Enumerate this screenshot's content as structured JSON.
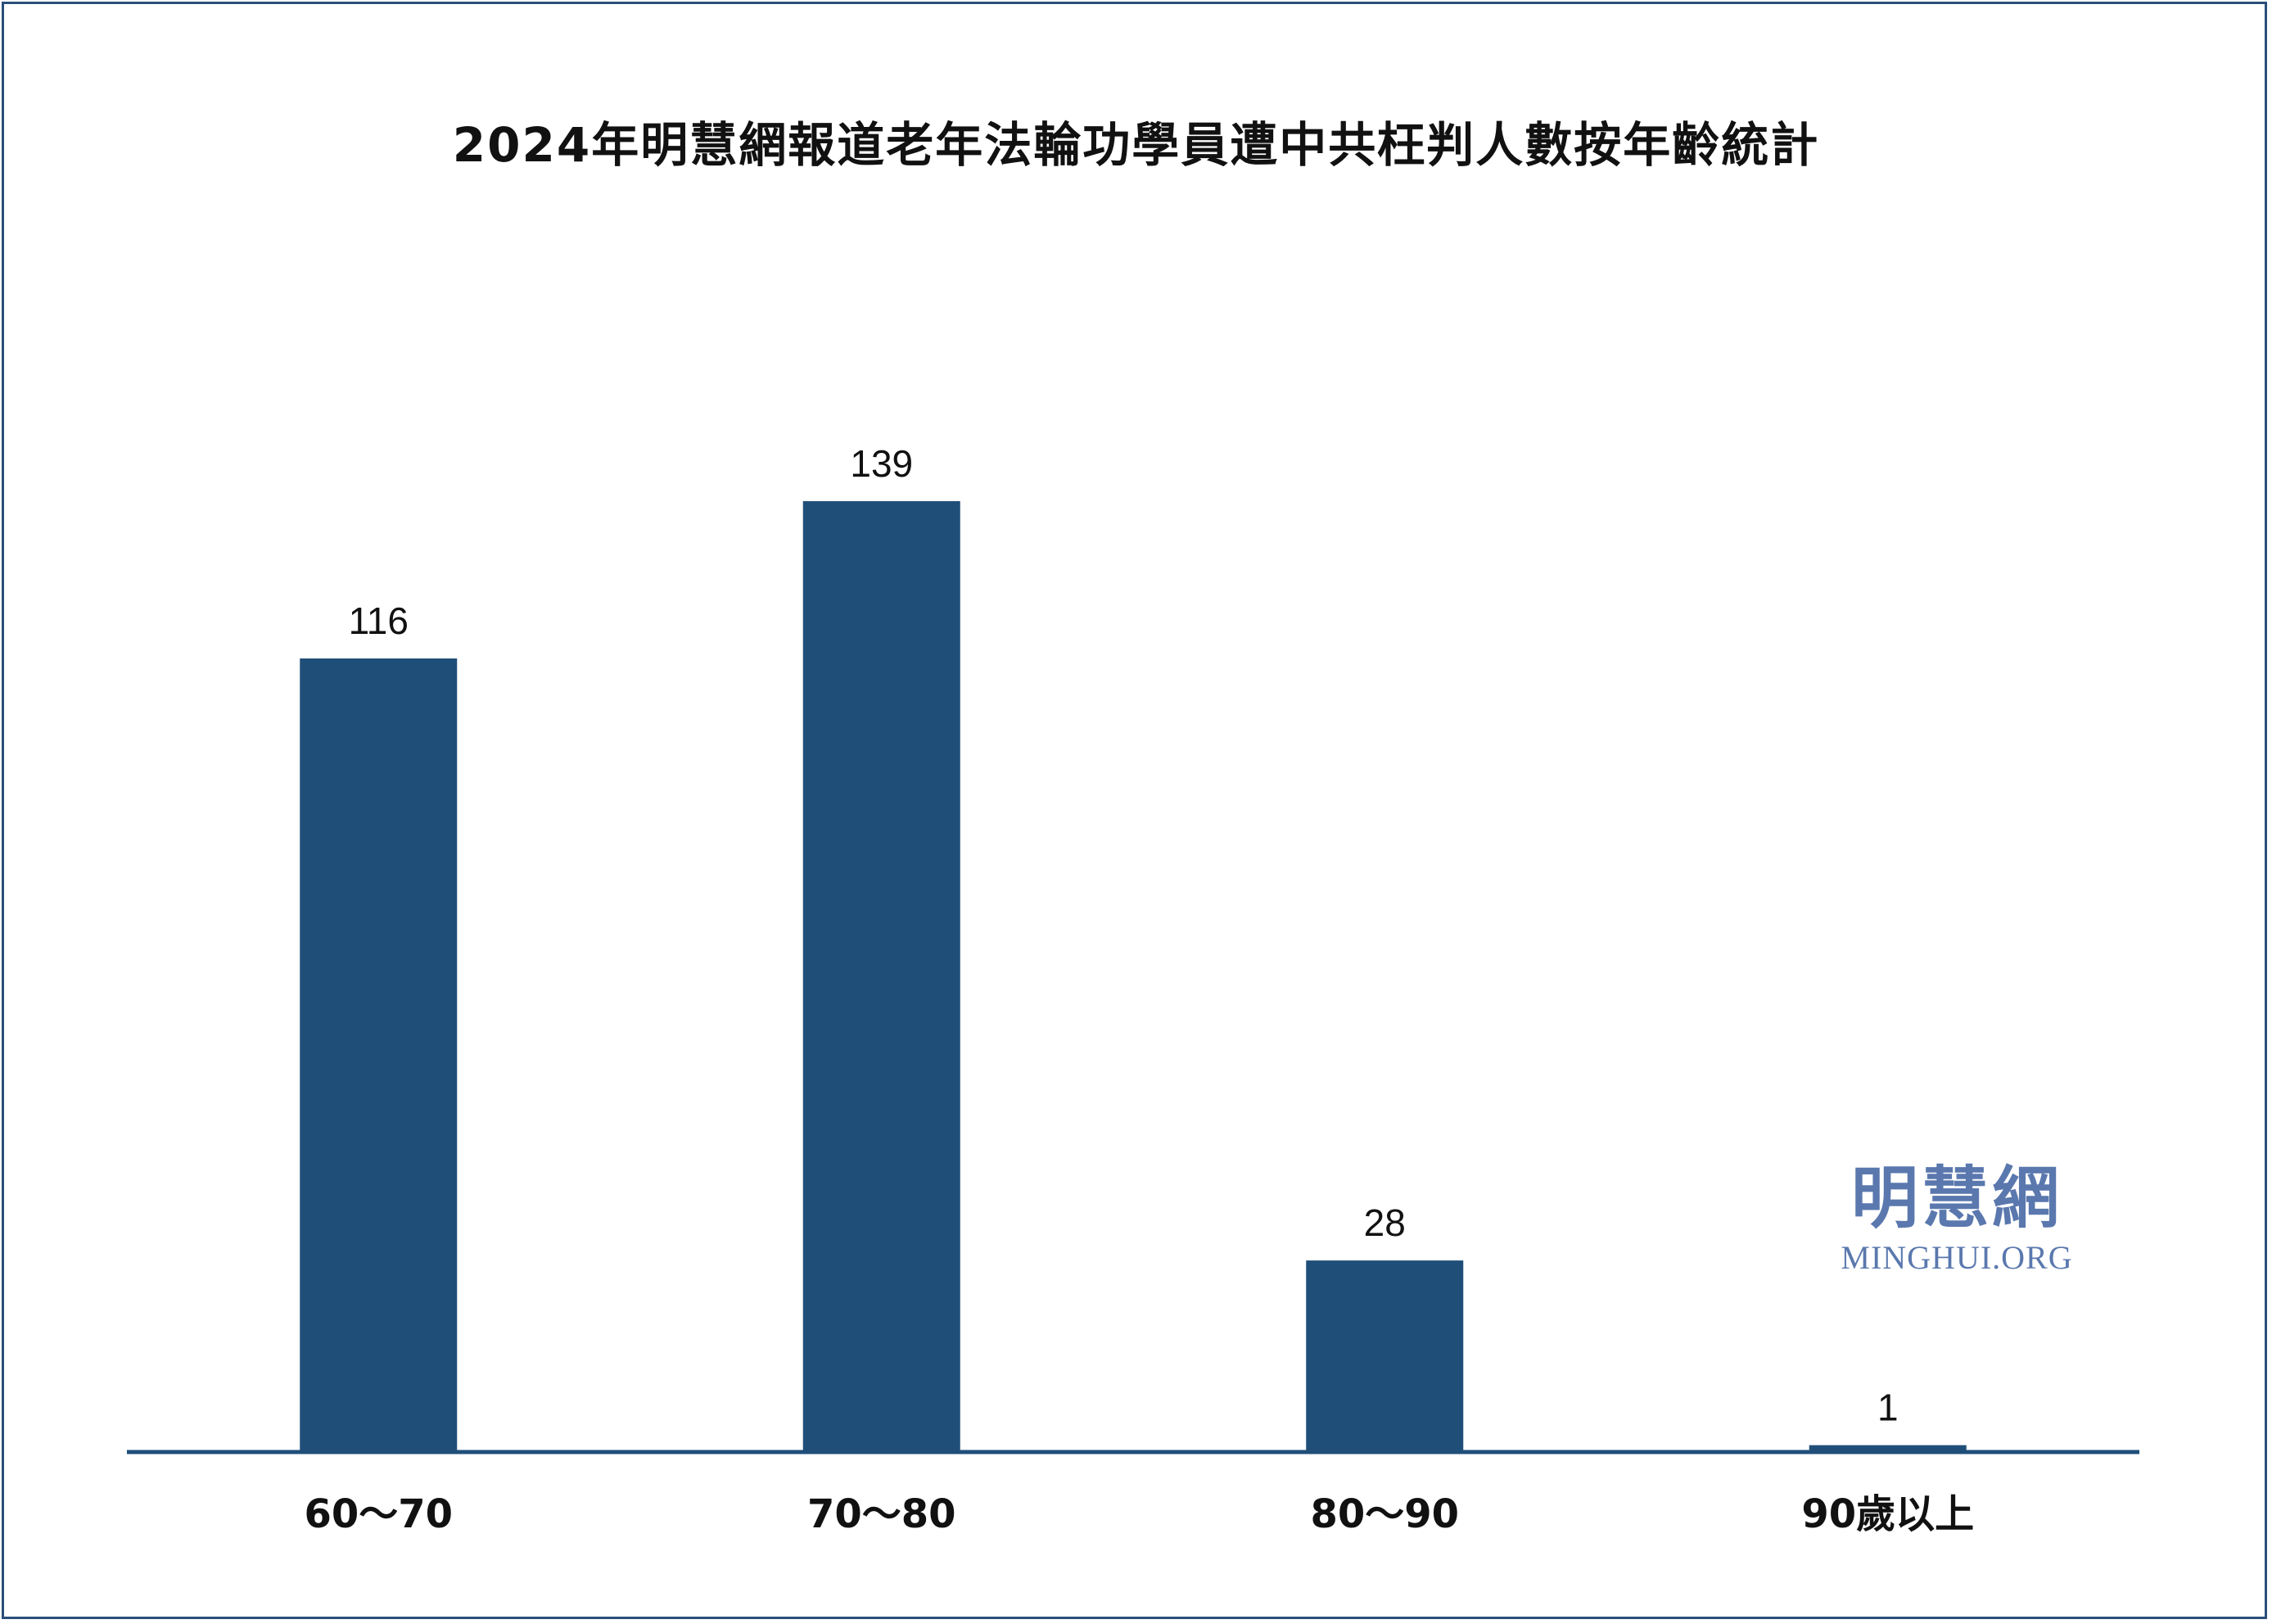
{
  "chart_data": {
    "type": "bar",
    "title": "2024年明慧網報道老年法輪功學員遭中共枉判人數按年齡統計",
    "categories": [
      "60～70",
      "70～80",
      "80～90",
      "90歲以上"
    ],
    "values": [
      116,
      139,
      28,
      1
    ],
    "xlabel": "",
    "ylabel": "",
    "ylim": [
      0,
      150
    ],
    "grid": false,
    "legend": "none",
    "bar_color": "#1f4e79",
    "axis_color": "#1f4e79"
  },
  "watermark": {
    "chinese": "明慧網",
    "english": "MINGHUI.ORG",
    "color": "#5a78ae"
  }
}
